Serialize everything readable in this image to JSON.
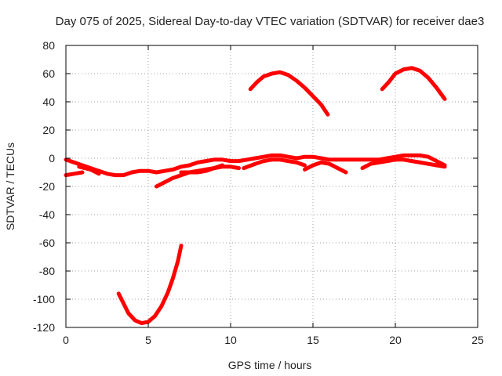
{
  "chart_data": {
    "type": "line",
    "title": "Day 075 of 2025, Sidereal Day-to-day VTEC variation (SDTVAR) for receiver dae3",
    "xlabel": "GPS time / hours",
    "ylabel": "SDTVAR / TECUs",
    "xlim": [
      0,
      25
    ],
    "ylim": [
      -120,
      80
    ],
    "xticks": [
      0,
      5,
      10,
      15,
      20,
      25
    ],
    "yticks": [
      -120,
      -100,
      -80,
      -60,
      -40,
      -20,
      0,
      20,
      40,
      60,
      80
    ],
    "grid": true,
    "series_color": "#ff0000",
    "series": [
      {
        "name": "main-band",
        "points": [
          [
            0.0,
            -1
          ],
          [
            0.5,
            -3
          ],
          [
            1.0,
            -5
          ],
          [
            1.5,
            -7
          ],
          [
            2.0,
            -9
          ],
          [
            2.5,
            -11
          ],
          [
            3.0,
            -12
          ],
          [
            3.5,
            -12
          ],
          [
            4.0,
            -10
          ],
          [
            4.5,
            -9
          ],
          [
            5.0,
            -9
          ],
          [
            5.5,
            -10
          ],
          [
            6.0,
            -9
          ],
          [
            6.5,
            -8
          ],
          [
            7.0,
            -6
          ],
          [
            7.5,
            -5
          ],
          [
            8.0,
            -3
          ],
          [
            8.5,
            -2
          ],
          [
            9.0,
            -1
          ],
          [
            9.5,
            -1
          ],
          [
            10.0,
            -2
          ],
          [
            10.5,
            -2
          ],
          [
            11.0,
            -1
          ],
          [
            11.5,
            0
          ],
          [
            12.0,
            1
          ],
          [
            12.5,
            2
          ],
          [
            13.0,
            2
          ],
          [
            13.5,
            1
          ],
          [
            14.0,
            0
          ],
          [
            14.5,
            1
          ],
          [
            15.0,
            1
          ],
          [
            15.5,
            0
          ],
          [
            16.0,
            -1
          ],
          [
            16.5,
            -1
          ],
          [
            17.0,
            -1
          ],
          [
            17.5,
            -1
          ],
          [
            18.0,
            -1
          ],
          [
            18.5,
            -1
          ],
          [
            19.0,
            -1
          ],
          [
            19.5,
            0
          ],
          [
            20.0,
            1
          ],
          [
            20.5,
            2
          ],
          [
            21.0,
            2
          ],
          [
            21.5,
            2
          ],
          [
            22.0,
            1
          ],
          [
            22.5,
            -2
          ],
          [
            23.0,
            -5
          ]
        ]
      },
      {
        "name": "early-low-a",
        "points": [
          [
            0.0,
            -12
          ],
          [
            0.5,
            -11
          ],
          [
            1.0,
            -10
          ]
        ]
      },
      {
        "name": "early-low-b",
        "points": [
          [
            0.8,
            -6
          ],
          [
            1.5,
            -8
          ],
          [
            2.0,
            -11
          ]
        ]
      },
      {
        "name": "mid-low",
        "points": [
          [
            5.5,
            -20
          ],
          [
            6.0,
            -17
          ],
          [
            6.5,
            -14
          ],
          [
            7.0,
            -12
          ],
          [
            7.5,
            -10
          ],
          [
            8.0,
            -9
          ],
          [
            8.5,
            -8
          ],
          [
            9.0,
            -7
          ],
          [
            9.5,
            -6
          ],
          [
            10.0,
            -6
          ],
          [
            10.5,
            -7
          ]
        ]
      },
      {
        "name": "mid-band-b",
        "points": [
          [
            7.0,
            -10
          ],
          [
            7.5,
            -10
          ],
          [
            8.0,
            -10
          ],
          [
            8.5,
            -9
          ],
          [
            9.0,
            -7
          ],
          [
            9.5,
            -5
          ]
        ]
      },
      {
        "name": "mid-band-c",
        "points": [
          [
            10.8,
            -7
          ],
          [
            11.5,
            -4
          ],
          [
            12.0,
            -2
          ],
          [
            12.5,
            -1
          ],
          [
            13.0,
            -1
          ],
          [
            13.5,
            -2
          ],
          [
            14.0,
            -3
          ],
          [
            14.5,
            -5
          ]
        ]
      },
      {
        "name": "mid-band-d",
        "points": [
          [
            14.5,
            -8
          ],
          [
            15.0,
            -5
          ],
          [
            15.5,
            -3
          ],
          [
            16.0,
            -4
          ],
          [
            16.5,
            -7
          ],
          [
            17.0,
            -10
          ]
        ]
      },
      {
        "name": "late-band-b",
        "points": [
          [
            18.0,
            -7
          ],
          [
            18.5,
            -4
          ],
          [
            19.0,
            -3
          ],
          [
            19.5,
            -2
          ],
          [
            20.0,
            -1
          ],
          [
            20.5,
            -1
          ],
          [
            21.0,
            -2
          ],
          [
            21.5,
            -3
          ],
          [
            22.0,
            -4
          ],
          [
            22.5,
            -5
          ],
          [
            23.0,
            -6
          ]
        ]
      },
      {
        "name": "arc-high-1",
        "points": [
          [
            11.2,
            49
          ],
          [
            11.6,
            54
          ],
          [
            12.0,
            58
          ],
          [
            12.5,
            60
          ],
          [
            13.0,
            61
          ],
          [
            13.5,
            59
          ],
          [
            14.0,
            55
          ],
          [
            14.5,
            50
          ],
          [
            15.0,
            44
          ],
          [
            15.5,
            38
          ],
          [
            15.9,
            31
          ]
        ]
      },
      {
        "name": "arc-high-2",
        "points": [
          [
            19.2,
            49
          ],
          [
            19.6,
            54
          ],
          [
            20.0,
            60
          ],
          [
            20.5,
            63
          ],
          [
            21.0,
            64
          ],
          [
            21.5,
            62
          ],
          [
            22.0,
            57
          ],
          [
            22.5,
            50
          ],
          [
            23.0,
            42
          ]
        ]
      },
      {
        "name": "arc-low",
        "points": [
          [
            3.2,
            -96
          ],
          [
            3.5,
            -103
          ],
          [
            3.8,
            -110
          ],
          [
            4.2,
            -115
          ],
          [
            4.6,
            -117
          ],
          [
            5.0,
            -116
          ],
          [
            5.4,
            -112
          ],
          [
            5.8,
            -105
          ],
          [
            6.2,
            -95
          ],
          [
            6.5,
            -85
          ],
          [
            6.8,
            -73
          ],
          [
            7.0,
            -62
          ]
        ]
      }
    ]
  }
}
